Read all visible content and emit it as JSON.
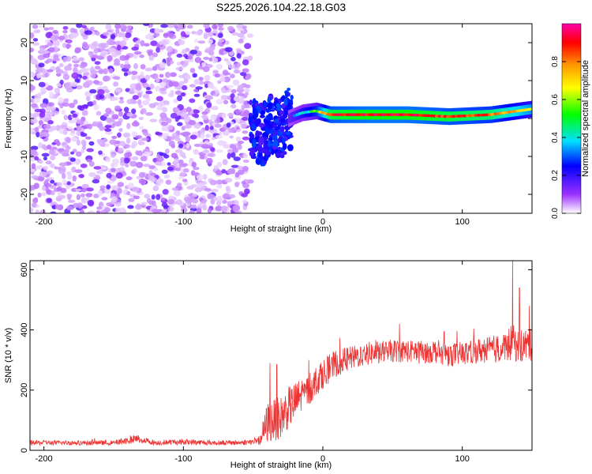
{
  "title": "S225.2026.104.22.18.G03",
  "chart_data": [
    {
      "type": "heatmap",
      "xlabel": "Height of straight line (km)",
      "ylabel": "Frequency (Hz)",
      "xlim": [
        -210,
        150
      ],
      "ylim": [
        -25,
        25
      ],
      "xticks": [
        -200,
        -100,
        0,
        100
      ],
      "yticks": [
        20,
        10,
        0,
        -10,
        -20
      ],
      "colorbar": {
        "label": "Normalized spectral amplitude",
        "range": [
          0,
          1
        ],
        "ticks": [
          "0.0",
          "0.2",
          "0.4",
          "0.6",
          "0.8"
        ],
        "tick_values": [
          0.0,
          0.2,
          0.4,
          0.6,
          0.8
        ],
        "colors": [
          "#ffffff",
          "#9b30ff",
          "#0000ff",
          "#00e0ff",
          "#00ff00",
          "#ffff00",
          "#ff9900",
          "#ff0000",
          "#ff00aa"
        ]
      },
      "noise_region": {
        "x_range": [
          -210,
          -52
        ],
        "f_range": [
          -25,
          25
        ],
        "amplitude": [
          0.05,
          0.2
        ]
      },
      "signal_track": [
        {
          "x": -52,
          "f": -2.0,
          "amp": 0.15
        },
        {
          "x": -45,
          "f": -5.0,
          "amp": 0.18
        },
        {
          "x": -40,
          "f": -3.0,
          "amp": 0.2
        },
        {
          "x": -35,
          "f": -1.0,
          "amp": 0.2
        },
        {
          "x": -30,
          "f": -2.5,
          "amp": 0.25
        },
        {
          "x": -25,
          "f": 0.0,
          "amp": 0.3
        },
        {
          "x": -15,
          "f": 1.5,
          "amp": 0.4
        },
        {
          "x": -5,
          "f": 2.0,
          "amp": 0.5
        },
        {
          "x": 5,
          "f": 1.0,
          "amp": 0.85
        },
        {
          "x": 30,
          "f": 1.0,
          "amp": 0.9
        },
        {
          "x": 60,
          "f": 1.0,
          "amp": 0.9
        },
        {
          "x": 90,
          "f": 0.5,
          "amp": 0.85
        },
        {
          "x": 120,
          "f": 1.0,
          "amp": 0.8
        },
        {
          "x": 150,
          "f": 2.5,
          "amp": 0.6
        }
      ]
    },
    {
      "type": "line",
      "xlabel": "Height of straight line (km)",
      "ylabel": "SNR (10 * v/v)",
      "xlim": [
        -210,
        150
      ],
      "ylim": [
        0,
        630
      ],
      "xticks": [
        -200,
        -100,
        0,
        100
      ],
      "yticks": [
        0,
        200,
        400,
        600
      ],
      "series": [
        {
          "name": "SNR",
          "color": "#ee3333",
          "x": [
            -210,
            -180,
            -150,
            -133,
            -120,
            -100,
            -80,
            -60,
            -45,
            -40,
            -35,
            -30,
            -25,
            -20,
            -15,
            -10,
            -5,
            0,
            10,
            20,
            30,
            40,
            50,
            60,
            70,
            80,
            90,
            100,
            110,
            120,
            130,
            136,
            140,
            145,
            150
          ],
          "y": [
            25,
            25,
            25,
            38,
            25,
            28,
            25,
            25,
            30,
            90,
            100,
            110,
            140,
            160,
            185,
            200,
            230,
            255,
            290,
            305,
            320,
            325,
            330,
            330,
            325,
            330,
            320,
            320,
            330,
            335,
            340,
            360,
            345,
            350,
            350
          ],
          "spread": [
            8,
            8,
            8,
            15,
            8,
            10,
            8,
            8,
            12,
            70,
            70,
            70,
            70,
            65,
            60,
            55,
            50,
            50,
            45,
            40,
            40,
            38,
            38,
            38,
            38,
            40,
            40,
            40,
            42,
            45,
            50,
            60,
            55,
            55,
            55
          ],
          "peaks": [
            [
              -38,
              290
            ],
            [
              -33,
              285
            ],
            [
              -10,
              300
            ],
            [
              55,
              420
            ],
            [
              87,
              395
            ],
            [
              136,
              630
            ],
            [
              141,
              540
            ],
            [
              148,
              480
            ]
          ]
        }
      ]
    }
  ]
}
